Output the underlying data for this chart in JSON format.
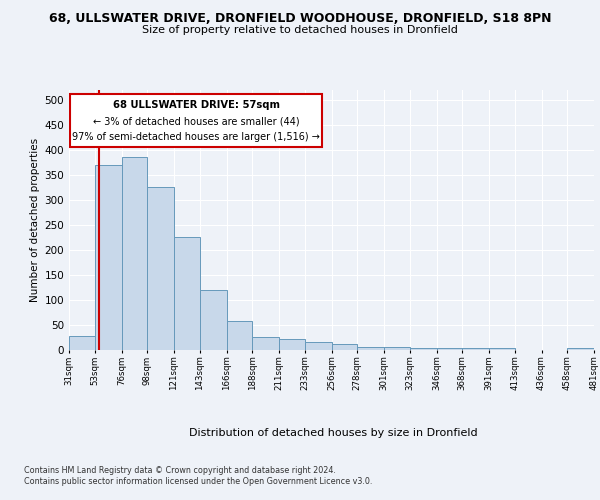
{
  "title_line1": "68, ULLSWATER DRIVE, DRONFIELD WOODHOUSE, DRONFIELD, S18 8PN",
  "title_line2": "Size of property relative to detached houses in Dronfield",
  "xlabel": "Distribution of detached houses by size in Dronfield",
  "ylabel": "Number of detached properties",
  "bar_color": "#c8d8ea",
  "bar_edge_color": "#6699bb",
  "annotation_text_line1": "68 ULLSWATER DRIVE: 57sqm",
  "annotation_text_line2": "← 3% of detached houses are smaller (44)",
  "annotation_text_line3": "97% of semi-detached houses are larger (1,516) →",
  "footer_line1": "Contains HM Land Registry data © Crown copyright and database right 2024.",
  "footer_line2": "Contains public sector information licensed under the Open Government Licence v3.0.",
  "bin_edges": [
    31,
    53,
    76,
    98,
    121,
    143,
    166,
    188,
    211,
    233,
    256,
    278,
    301,
    323,
    346,
    368,
    391,
    413,
    436,
    458,
    481
  ],
  "bar_heights": [
    28,
    370,
    385,
    325,
    225,
    120,
    58,
    27,
    22,
    17,
    13,
    7,
    6,
    5,
    4,
    4,
    4,
    1,
    1,
    5
  ],
  "ylim": [
    0,
    520
  ],
  "xlim": [
    31,
    481
  ],
  "tick_labels": [
    "31sqm",
    "53sqm",
    "76sqm",
    "98sqm",
    "121sqm",
    "143sqm",
    "166sqm",
    "188sqm",
    "211sqm",
    "233sqm",
    "256sqm",
    "278sqm",
    "301sqm",
    "323sqm",
    "346sqm",
    "368sqm",
    "391sqm",
    "413sqm",
    "436sqm",
    "458sqm",
    "481sqm"
  ],
  "background_color": "#eef2f8",
  "grid_color": "#ffffff",
  "vline_color": "#cc0000",
  "vline_x": 57,
  "yticks": [
    0,
    50,
    100,
    150,
    200,
    250,
    300,
    350,
    400,
    450,
    500
  ]
}
